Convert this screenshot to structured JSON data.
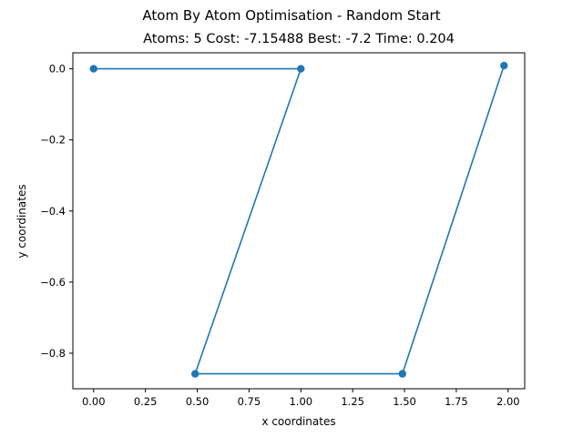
{
  "chart_data": {
    "type": "line",
    "suptitle": "Atom By Atom Optimisation - Random Start",
    "title": "Atoms: 5 Cost: -7.15488 Best: -7.2 Time: 0.204",
    "xlabel": "x coordinates",
    "ylabel": "y coordinates",
    "xlim": [
      -0.1,
      2.08
    ],
    "ylim": [
      -0.9,
      0.045
    ],
    "xticks": [
      0.0,
      0.25,
      0.5,
      0.75,
      1.0,
      1.25,
      1.5,
      1.75,
      2.0
    ],
    "xtick_labels": [
      "0.00",
      "0.25",
      "0.50",
      "0.75",
      "1.00",
      "1.25",
      "1.50",
      "1.75",
      "2.00"
    ],
    "yticks": [
      0.0,
      -0.2,
      -0.4,
      -0.6,
      -0.8
    ],
    "ytick_labels": [
      "0.0",
      "−0.2",
      "−0.4",
      "−0.6",
      "−0.8"
    ],
    "grid": false,
    "legend": false,
    "series": [
      {
        "color": "#1f77b4",
        "marker": "circle",
        "x": [
          0.0,
          1.0,
          0.49,
          1.49,
          1.98
        ],
        "y": [
          0.0,
          0.0,
          -0.858,
          -0.858,
          0.009
        ]
      }
    ]
  }
}
